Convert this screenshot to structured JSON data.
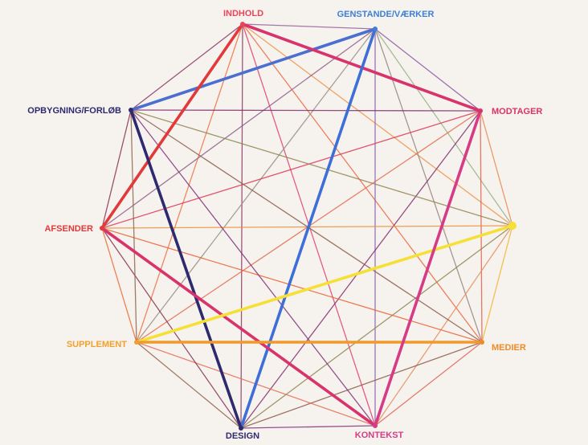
{
  "nodes": [
    {
      "id": "indhold",
      "label": "INDHOLD",
      "color": "#e8455a"
    },
    {
      "id": "genstande",
      "label": "GENSTANDE/VÆRKER",
      "color": "#3d7fd6"
    },
    {
      "id": "modtager",
      "label": "MODTAGER",
      "color": "#d8336b"
    },
    {
      "id": "yellow",
      "label": "",
      "color": "#f6e036"
    },
    {
      "id": "medier",
      "label": "MEDIER",
      "color": "#ef8a28"
    },
    {
      "id": "kontekst",
      "label": "KONTEKST",
      "color": "#d63c86"
    },
    {
      "id": "design",
      "label": "DESIGN",
      "color": "#2e2a6e"
    },
    {
      "id": "supplement",
      "label": "SUPPLEMENT",
      "color": "#f2a02c"
    },
    {
      "id": "afsender",
      "label": "AFSENDER",
      "color": "#e23a3a"
    },
    {
      "id": "opbygning",
      "label": "OPBYGNING/FORLØB",
      "color": "#2e2a6e"
    }
  ],
  "emphasized_edges": [
    {
      "from": "opbygning",
      "to": "genstande",
      "color": "#4a6fd0"
    },
    {
      "from": "indhold",
      "to": "afsender",
      "color": "#e23a3a"
    },
    {
      "from": "indhold",
      "to": "modtager",
      "color": "#d8336b"
    },
    {
      "from": "genstande",
      "to": "design",
      "color": "#3d6fd6"
    },
    {
      "from": "opbygning",
      "to": "design",
      "color": "#2e2a6e"
    },
    {
      "from": "afsender",
      "to": "kontekst",
      "color": "#d8336b"
    },
    {
      "from": "supplement",
      "to": "yellow",
      "color": "#f6e036"
    },
    {
      "from": "supplement",
      "to": "medier",
      "color": "#f09a2c"
    },
    {
      "from": "modtager",
      "to": "kontekst",
      "color": "#d63c86"
    }
  ]
}
